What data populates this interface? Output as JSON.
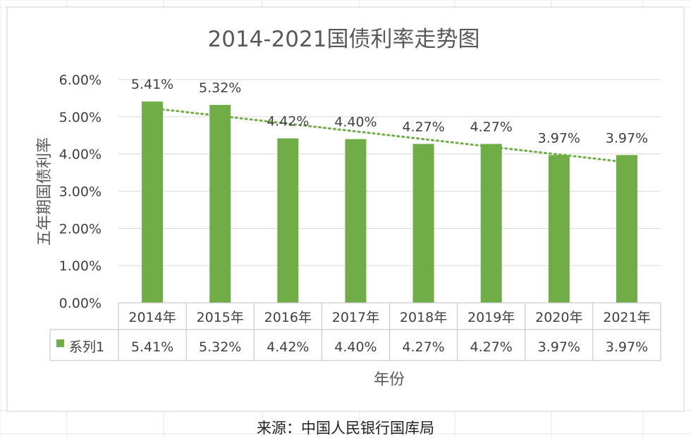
{
  "chart_data": {
    "type": "bar",
    "title": "2014-2021国债利率走势图",
    "xlabel": "年份",
    "ylabel": "五年期国债利率",
    "categories": [
      "2014年",
      "2015年",
      "2016年",
      "2017年",
      "2018年",
      "2019年",
      "2020年",
      "2021年"
    ],
    "series": [
      {
        "name": "系列1",
        "values": [
          5.41,
          5.32,
          4.42,
          4.4,
          4.27,
          4.27,
          3.97,
          3.97
        ]
      }
    ],
    "data_labels": [
      "5.41%",
      "5.32%",
      "4.42%",
      "4.40%",
      "4.27%",
      "4.27%",
      "3.97%",
      "3.97%"
    ],
    "y_ticks": [
      "0.00%",
      "1.00%",
      "2.00%",
      "3.00%",
      "4.00%",
      "5.00%",
      "6.00%"
    ],
    "ylim": [
      0,
      6
    ],
    "y_unit": "%",
    "trendline": "linear",
    "data_table": true,
    "grid": true,
    "colors": {
      "bar": "#70ad47",
      "trendline": "#70ad47",
      "grid": "#d9d9d9",
      "text": "#404040"
    }
  },
  "source_note": "来源：中国人民银行国库局"
}
